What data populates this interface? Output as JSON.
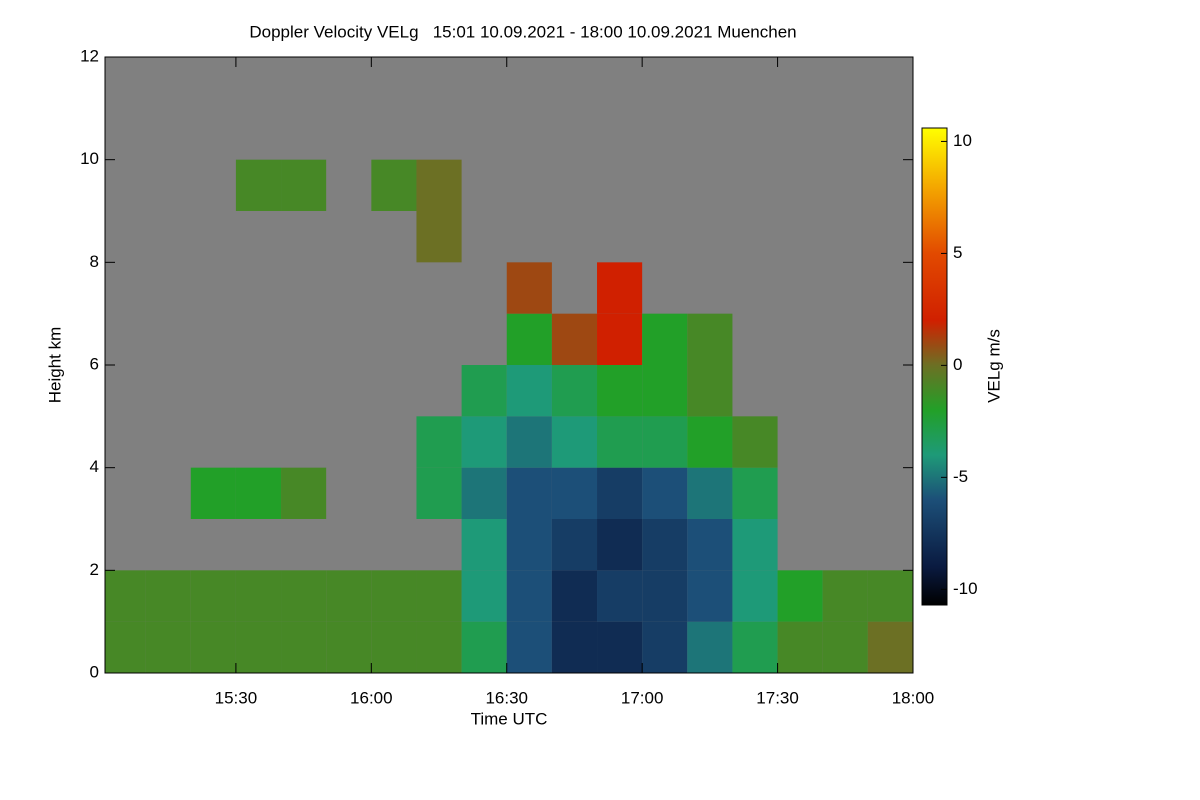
{
  "chart_data": {
    "type": "heatmap",
    "title": "Doppler Velocity VELg   15:01 10.09.2021 - 18:00 10.09.2021 Muenchen",
    "xlabel": "Time UTC",
    "ylabel": "Height km",
    "colorbar_label": "VELg m/s",
    "background": "#808080",
    "xlim": [
      901,
      1080
    ],
    "xticks": [
      {
        "value": 930,
        "label": "15:30"
      },
      {
        "value": 960,
        "label": "16:00"
      },
      {
        "value": 990,
        "label": "16:30"
      },
      {
        "value": 1020,
        "label": "17:00"
      },
      {
        "value": 1050,
        "label": "17:30"
      },
      {
        "value": 1080,
        "label": "18:00"
      }
    ],
    "ylim": [
      0,
      12
    ],
    "yticks": [
      0,
      2,
      4,
      6,
      8,
      10,
      12
    ],
    "zlim": [
      -10.7,
      10.6
    ],
    "zticks": [
      10,
      5,
      0,
      -5,
      -10
    ],
    "colormap": [
      {
        "value": -10.7,
        "color": "#000000"
      },
      {
        "value": -9,
        "color": "#0a1a40"
      },
      {
        "value": -6,
        "color": "#1c4f78"
      },
      {
        "value": -4,
        "color": "#1e9a78"
      },
      {
        "value": -2,
        "color": "#22a028"
      },
      {
        "value": 0,
        "color": "#6c7024"
      },
      {
        "value": 2,
        "color": "#d02000"
      },
      {
        "value": 5,
        "color": "#e24a00"
      },
      {
        "value": 8,
        "color": "#f4a800"
      },
      {
        "value": 10.6,
        "color": "#ffff00"
      }
    ],
    "x": [
      901,
      910,
      920,
      930,
      940,
      950,
      960,
      970,
      980,
      990,
      1000,
      1010,
      1020,
      1030,
      1040,
      1050,
      1060,
      1070,
      1080
    ],
    "y": [
      0,
      1,
      2,
      3,
      4,
      5,
      6,
      7,
      8,
      9,
      10,
      11,
      12
    ],
    "z": [
      [
        -1,
        -1,
        -1,
        -1,
        -1,
        -1,
        -1,
        -1,
        -3,
        -6,
        -8,
        -8,
        -7,
        -5,
        -3,
        -1,
        -1,
        0
      ],
      [
        -1,
        -1,
        -1,
        -1,
        -1,
        -1,
        -1,
        -1,
        -4,
        -6,
        -8,
        -7,
        -7,
        -6,
        -4,
        -2,
        -1,
        -1
      ],
      [
        null,
        null,
        null,
        null,
        null,
        null,
        null,
        null,
        -4,
        -6,
        -7,
        -8,
        -7,
        -6,
        -4,
        null,
        null,
        null
      ],
      [
        null,
        null,
        -2,
        -2,
        -1,
        null,
        null,
        -3,
        -5,
        -6,
        -6,
        -7,
        -6,
        -5,
        -3,
        null,
        null,
        null
      ],
      [
        null,
        null,
        null,
        null,
        null,
        null,
        null,
        -3,
        -4,
        -5,
        -4,
        -3,
        -3,
        -2,
        -1,
        null,
        null,
        null
      ],
      [
        null,
        null,
        null,
        null,
        null,
        null,
        null,
        null,
        -3,
        -4,
        -3,
        -2,
        -2,
        -1,
        null,
        null,
        null,
        null
      ],
      [
        null,
        null,
        null,
        null,
        null,
        null,
        null,
        null,
        null,
        -2,
        1,
        2,
        -2,
        -1,
        null,
        null,
        null,
        null
      ],
      [
        null,
        null,
        null,
        null,
        null,
        null,
        null,
        null,
        null,
        1,
        null,
        2,
        null,
        null,
        null,
        null,
        null,
        null
      ],
      [
        null,
        null,
        null,
        null,
        null,
        null,
        null,
        0,
        null,
        null,
        null,
        null,
        null,
        null,
        null,
        null,
        null,
        null
      ],
      [
        null,
        null,
        null,
        -1,
        -1,
        null,
        -1,
        0,
        null,
        null,
        null,
        null,
        null,
        null,
        null,
        null,
        null,
        null
      ],
      [
        null,
        null,
        null,
        null,
        null,
        null,
        null,
        null,
        null,
        null,
        null,
        null,
        null,
        null,
        null,
        null,
        null,
        null
      ],
      [
        null,
        null,
        null,
        null,
        null,
        null,
        null,
        null,
        null,
        null,
        null,
        null,
        null,
        null,
        null,
        null,
        null,
        null
      ]
    ]
  }
}
